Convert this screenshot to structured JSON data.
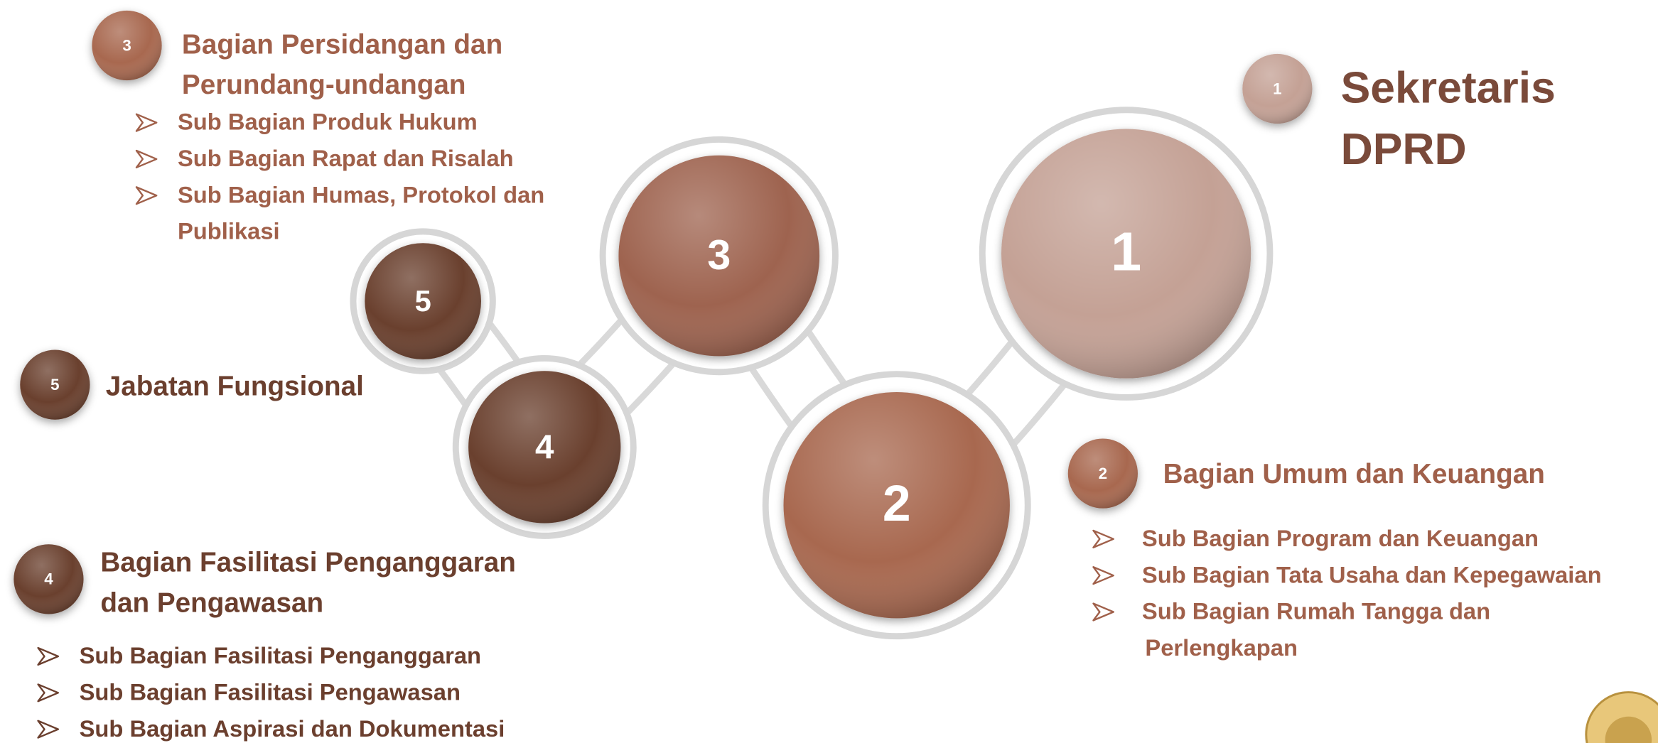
{
  "nodes": [
    {
      "label": "1"
    },
    {
      "label": "2"
    },
    {
      "label": "3"
    },
    {
      "label": "4"
    },
    {
      "label": "5"
    }
  ],
  "sections": [
    {
      "badge": "1",
      "title": [
        "Sekretaris",
        "DPRD"
      ],
      "items": []
    },
    {
      "badge": "2",
      "title": [
        "Bagian Umum dan Keuangan"
      ],
      "items": [
        [
          "Sub Bagian Program dan Keuangan"
        ],
        [
          "Sub Bagian Tata Usaha dan Kepegawaian"
        ],
        [
          "Sub Bagian Rumah Tangga dan",
          "Perlengkapan"
        ]
      ]
    },
    {
      "badge": "3",
      "title": [
        "Bagian Persidangan dan",
        "Perundang-undangan"
      ],
      "items": [
        [
          "Sub Bagian Produk Hukum"
        ],
        [
          "Sub Bagian Rapat dan Risalah"
        ],
        [
          "Sub Bagian Humas, Protokol dan",
          "Publikasi"
        ]
      ]
    },
    {
      "badge": "4",
      "title": [
        "Bagian Fasilitasi Penganggaran",
        "dan Pengawasan"
      ],
      "items": [
        [
          "Sub Bagian Fasilitasi Penganggaran"
        ],
        [
          "Sub Bagian Fasilitasi Pengawasan"
        ],
        [
          "Sub Bagian Aspirasi dan Dokumentasi"
        ]
      ]
    },
    {
      "badge": "5",
      "title": [
        "Jabatan Fungsional"
      ],
      "items": []
    }
  ]
}
